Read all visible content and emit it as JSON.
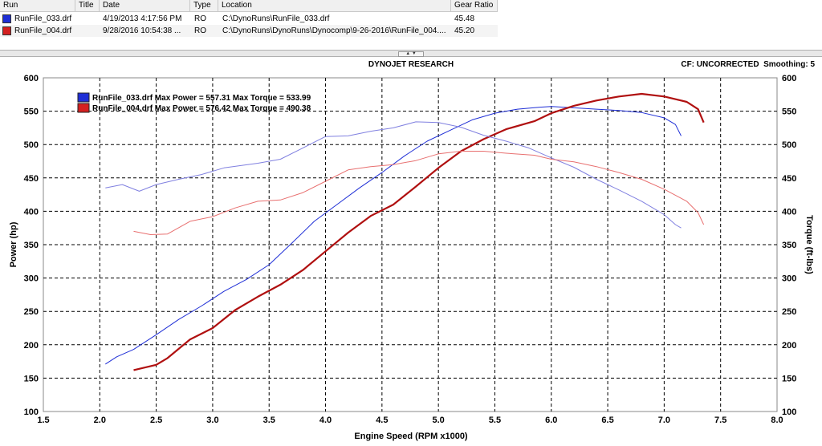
{
  "runs_table": {
    "headers": [
      "Run",
      "Title",
      "Date",
      "Type",
      "Location",
      "Gear Ratio"
    ],
    "rows": [
      {
        "run": "RunFile_033.drf",
        "title": "",
        "date": "4/19/2013 4:17:56 PM",
        "type": "RO",
        "location": "C:\\DynoRuns\\RunFile_033.drf",
        "gear_ratio": "45.48",
        "color": "#1f2fd6"
      },
      {
        "run": "RunFile_004.drf",
        "title": "",
        "date": "9/28/2016 10:54:38 ...",
        "type": "RO",
        "location": "C:\\DynoRuns\\DynoRuns\\Dynocomp\\9-26-2016\\RunFile_004....",
        "gear_ratio": "45.20",
        "color": "#d42020"
      }
    ]
  },
  "chart_header": {
    "title": "DYNOJET RESEARCH",
    "cf_text": "CF: UNCORRECTED  Smoothing: 5"
  },
  "chart_data": {
    "type": "line",
    "title": "DYNOJET RESEARCH",
    "xlabel": "Engine Speed (RPM x1000)",
    "ylabel": "Power (hp)",
    "y2label": "Torque (ft-lbs)",
    "xlim": [
      1.5,
      8.0
    ],
    "ylim": [
      100,
      600
    ],
    "y2lim": [
      100,
      600
    ],
    "x_ticks": [
      "1.5",
      "2.0",
      "2.5",
      "3.0",
      "3.5",
      "4.0",
      "4.5",
      "5.0",
      "5.5",
      "6.0",
      "6.5",
      "7.0",
      "7.5",
      "8.0"
    ],
    "y_ticks": [
      "100",
      "150",
      "200",
      "250",
      "300",
      "350",
      "400",
      "450",
      "500",
      "550",
      "600"
    ],
    "grid": true,
    "legend": [
      {
        "text": "RunFile_033.drf Max Power = 557.31 Max Torque = 533.99",
        "color": "#1f2fd6"
      },
      {
        "text": "RunFile_004.drf Max Power = 576.42 Max Torque = 490.38",
        "color": "#d42020"
      }
    ],
    "series": [
      {
        "run": "RunFile_033.drf",
        "measure": "power",
        "color": "#1f2fd6",
        "weight": "thin",
        "x": [
          2.05,
          2.15,
          2.3,
          2.5,
          2.7,
          2.9,
          3.1,
          3.3,
          3.5,
          3.7,
          3.9,
          4.1,
          4.3,
          4.5,
          4.7,
          4.9,
          5.1,
          5.3,
          5.5,
          5.7,
          5.9,
          6.0,
          6.2,
          6.4,
          6.6,
          6.8,
          7.0,
          7.1,
          7.15
        ],
        "y": [
          171,
          182,
          193,
          215,
          238,
          258,
          280,
          298,
          320,
          352,
          385,
          410,
          435,
          458,
          483,
          505,
          521,
          537,
          547,
          553,
          556,
          557,
          555,
          553,
          551,
          548,
          540,
          530,
          513
        ]
      },
      {
        "run": "RunFile_004.drf",
        "measure": "power",
        "color": "#b01010",
        "weight": "thick",
        "x": [
          2.3,
          2.5,
          2.6,
          2.8,
          3.0,
          3.2,
          3.4,
          3.6,
          3.8,
          4.0,
          4.2,
          4.4,
          4.6,
          4.8,
          5.0,
          5.2,
          5.4,
          5.6,
          5.85,
          6.0,
          6.2,
          6.4,
          6.6,
          6.8,
          7.0,
          7.2,
          7.3,
          7.35
        ],
        "y": [
          162,
          170,
          180,
          208,
          225,
          252,
          272,
          290,
          312,
          340,
          368,
          393,
          410,
          437,
          465,
          490,
          508,
          523,
          535,
          547,
          558,
          566,
          572,
          576,
          572,
          564,
          553,
          533
        ]
      },
      {
        "run": "RunFile_033.drf",
        "measure": "torque",
        "color": "#8080e0",
        "weight": "thin",
        "x": [
          2.05,
          2.2,
          2.35,
          2.5,
          2.7,
          2.9,
          3.1,
          3.4,
          3.6,
          3.8,
          4.0,
          4.2,
          4.4,
          4.6,
          4.8,
          5.0,
          5.2,
          5.4,
          5.6,
          5.8,
          6.0,
          6.2,
          6.4,
          6.6,
          6.8,
          7.0,
          7.1,
          7.15
        ],
        "y": [
          435,
          440,
          430,
          440,
          448,
          455,
          465,
          472,
          478,
          495,
          512,
          513,
          520,
          525,
          534,
          533,
          526,
          514,
          505,
          495,
          480,
          466,
          448,
          432,
          415,
          395,
          380,
          375
        ]
      },
      {
        "run": "RunFile_004.drf",
        "measure": "torque",
        "color": "#e87070",
        "weight": "thin",
        "x": [
          2.3,
          2.45,
          2.6,
          2.8,
          3.0,
          3.2,
          3.4,
          3.6,
          3.8,
          4.0,
          4.2,
          4.4,
          4.6,
          4.8,
          5.0,
          5.2,
          5.4,
          5.6,
          5.85,
          6.0,
          6.2,
          6.4,
          6.6,
          6.8,
          7.0,
          7.2,
          7.3,
          7.35
        ],
        "y": [
          370,
          365,
          366,
          385,
          392,
          405,
          415,
          417,
          428,
          445,
          462,
          467,
          470,
          476,
          486,
          490,
          490,
          487,
          484,
          478,
          474,
          467,
          458,
          448,
          433,
          415,
          398,
          380
        ]
      }
    ]
  }
}
